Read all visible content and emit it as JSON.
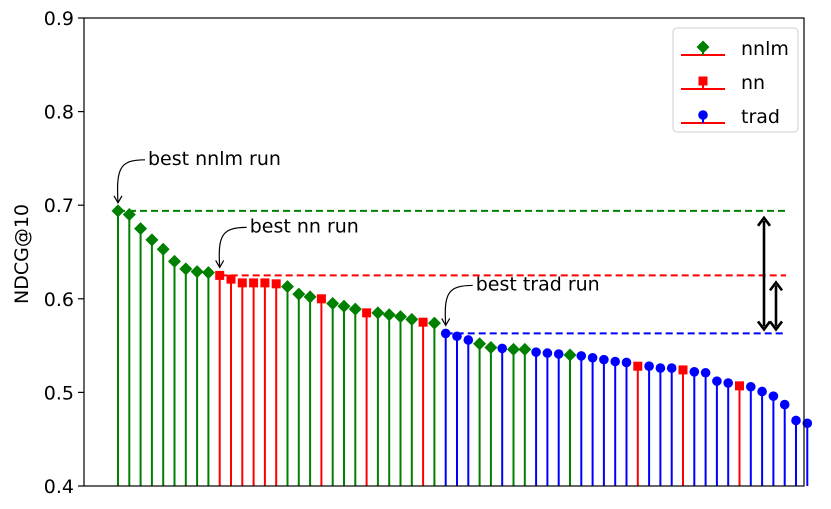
{
  "chart_data": {
    "type": "stem",
    "title": "",
    "xlabel": "",
    "ylabel": "NDCG@10",
    "ylim": [
      0.4,
      0.9
    ],
    "yticks": [
      "0.4",
      "0.5",
      "0.6",
      "0.7",
      "0.8",
      "0.9"
    ],
    "grid": false,
    "legend_position": "top-right",
    "colors": {
      "nnlm": "#008000",
      "nn": "#ff0000",
      "trad": "#0000ff",
      "nnlm_marker": "#008000",
      "nn_marker": "#ff0000",
      "trad_marker": "#0000ff"
    },
    "series_order": [
      "nnlm",
      "nn",
      "trad"
    ],
    "legend": [
      {
        "name": "nnlm",
        "marker": "diamond"
      },
      {
        "name": "nn",
        "marker": "square"
      },
      {
        "name": "trad",
        "marker": "circle"
      }
    ],
    "runs": [
      {
        "g": "nnlm",
        "v": 0.694
      },
      {
        "g": "nnlm",
        "v": 0.69
      },
      {
        "g": "nnlm",
        "v": 0.675
      },
      {
        "g": "nnlm",
        "v": 0.663
      },
      {
        "g": "nnlm",
        "v": 0.653
      },
      {
        "g": "nnlm",
        "v": 0.64
      },
      {
        "g": "nnlm",
        "v": 0.632
      },
      {
        "g": "nnlm",
        "v": 0.629
      },
      {
        "g": "nnlm",
        "v": 0.628
      },
      {
        "g": "nn",
        "v": 0.625
      },
      {
        "g": "nn",
        "v": 0.621
      },
      {
        "g": "nn",
        "v": 0.617
      },
      {
        "g": "nn",
        "v": 0.617
      },
      {
        "g": "nn",
        "v": 0.617
      },
      {
        "g": "nn",
        "v": 0.616
      },
      {
        "g": "nnlm",
        "v": 0.613
      },
      {
        "g": "nnlm",
        "v": 0.605
      },
      {
        "g": "nnlm",
        "v": 0.602
      },
      {
        "g": "nn",
        "v": 0.6
      },
      {
        "g": "nnlm",
        "v": 0.595
      },
      {
        "g": "nnlm",
        "v": 0.592
      },
      {
        "g": "nnlm",
        "v": 0.589
      },
      {
        "g": "nn",
        "v": 0.585
      },
      {
        "g": "nnlm",
        "v": 0.585
      },
      {
        "g": "nnlm",
        "v": 0.583
      },
      {
        "g": "nnlm",
        "v": 0.581
      },
      {
        "g": "nnlm",
        "v": 0.578
      },
      {
        "g": "nn",
        "v": 0.575
      },
      {
        "g": "nnlm",
        "v": 0.574
      },
      {
        "g": "trad",
        "v": 0.563
      },
      {
        "g": "trad",
        "v": 0.56
      },
      {
        "g": "trad",
        "v": 0.556
      },
      {
        "g": "nnlm",
        "v": 0.552
      },
      {
        "g": "nnlm",
        "v": 0.548
      },
      {
        "g": "trad",
        "v": 0.547
      },
      {
        "g": "nnlm",
        "v": 0.546
      },
      {
        "g": "nnlm",
        "v": 0.546
      },
      {
        "g": "trad",
        "v": 0.543
      },
      {
        "g": "trad",
        "v": 0.542
      },
      {
        "g": "trad",
        "v": 0.541
      },
      {
        "g": "nnlm",
        "v": 0.54
      },
      {
        "g": "trad",
        "v": 0.539
      },
      {
        "g": "trad",
        "v": 0.537
      },
      {
        "g": "trad",
        "v": 0.535
      },
      {
        "g": "trad",
        "v": 0.533
      },
      {
        "g": "trad",
        "v": 0.532
      },
      {
        "g": "nn",
        "v": 0.528
      },
      {
        "g": "trad",
        "v": 0.528
      },
      {
        "g": "trad",
        "v": 0.526
      },
      {
        "g": "trad",
        "v": 0.526
      },
      {
        "g": "nn",
        "v": 0.524
      },
      {
        "g": "trad",
        "v": 0.522
      },
      {
        "g": "trad",
        "v": 0.521
      },
      {
        "g": "trad",
        "v": 0.512
      },
      {
        "g": "trad",
        "v": 0.51
      },
      {
        "g": "nn",
        "v": 0.507
      },
      {
        "g": "trad",
        "v": 0.506
      },
      {
        "g": "trad",
        "v": 0.501
      },
      {
        "g": "trad",
        "v": 0.496
      },
      {
        "g": "trad",
        "v": 0.487
      },
      {
        "g": "trad",
        "v": 0.47
      },
      {
        "g": "trad",
        "v": 0.467
      }
    ],
    "reference_lines": [
      {
        "series": "nnlm",
        "value": 0.694
      },
      {
        "series": "nn",
        "value": 0.625
      },
      {
        "series": "trad",
        "value": 0.563
      }
    ],
    "annotations": [
      {
        "text": "best nnlm run",
        "target_run": 0
      },
      {
        "text": "best nn run",
        "target_run": 9
      },
      {
        "text": "best trad run",
        "target_run": 29
      }
    ],
    "difference_arrows": [
      {
        "from": 0.563,
        "to": 0.694
      },
      {
        "from": 0.563,
        "to": 0.625
      }
    ]
  }
}
